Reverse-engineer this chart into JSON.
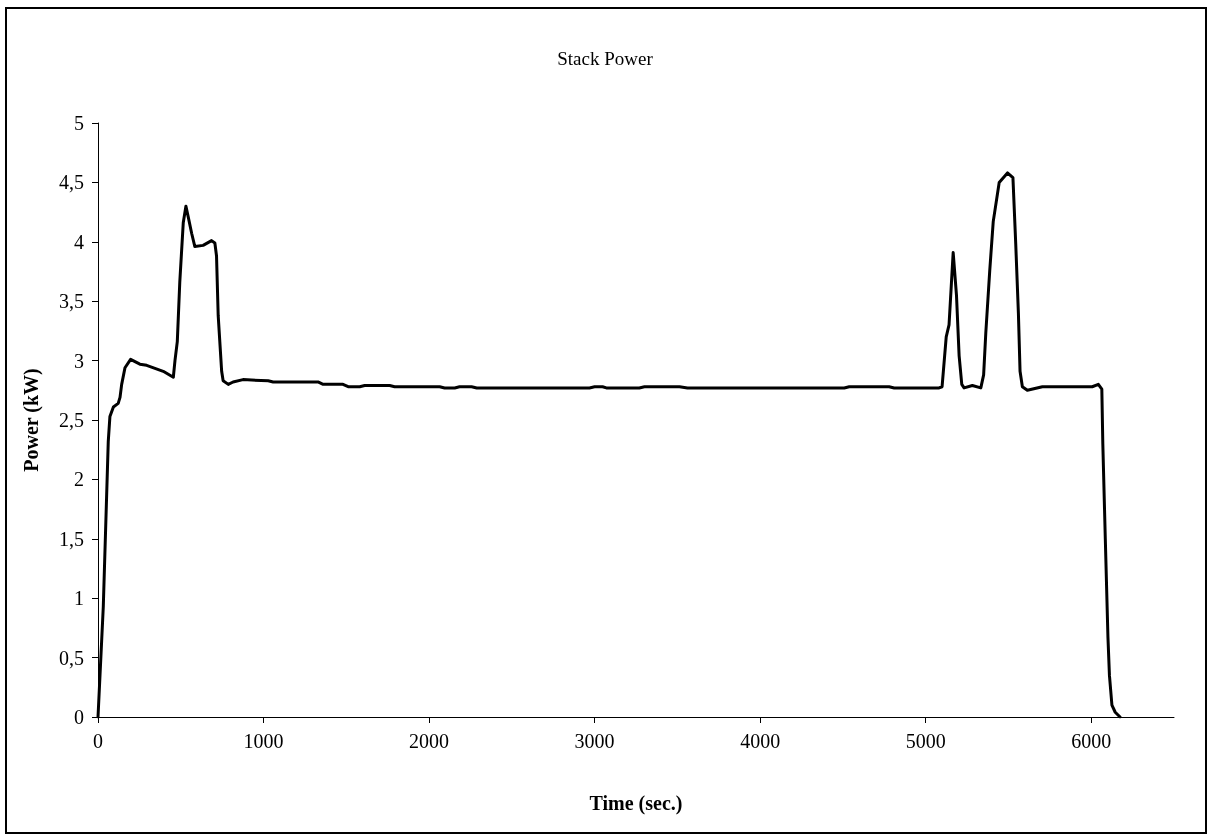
{
  "chart_data": {
    "type": "line",
    "title": "Stack Power",
    "xlabel": "Time (sec.)",
    "ylabel": "Power (kW)",
    "xlim": [
      0,
      6500
    ],
    "xticks": [
      0,
      1000,
      2000,
      3000,
      4000,
      5000,
      6000
    ],
    "ylim": [
      0,
      5
    ],
    "yticks": [
      0,
      {
        "value": 0.5,
        "label": "0,5"
      },
      1,
      {
        "value": 1.5,
        "label": "1,5"
      },
      2,
      {
        "value": 2.5,
        "label": "2,5"
      },
      3,
      {
        "value": 3.5,
        "label": "3,5"
      },
      4,
      {
        "value": 4.5,
        "label": "4,5"
      },
      5
    ],
    "grid": false,
    "marker": "none",
    "line_style": "solid",
    "series": [
      {
        "color": "#000000",
        "x": [
          0,
          32,
          62,
          72,
          93,
          122,
          133,
          143,
          163,
          197,
          253,
          294,
          394,
          455,
          465,
          479,
          494,
          515,
          531,
          545,
          566,
          585,
          635,
          686,
          706,
          716,
          726,
          747,
          756,
          787,
          816,
          876,
          1028,
          1058,
          1329,
          1360,
          1480,
          1511,
          1581,
          1611,
          1762,
          1792,
          2064,
          2094,
          2155,
          2184,
          2257,
          2288,
          2969,
          3000,
          3048,
          3071,
          3270,
          3301,
          3513,
          3561,
          4508,
          4538,
          4779,
          4810,
          5081,
          5099,
          5124,
          5141,
          5166,
          5186,
          5202,
          5218,
          5232,
          5282,
          5333,
          5350,
          5363,
          5387,
          5408,
          5444,
          5494,
          5527,
          5544,
          5560,
          5570,
          5584,
          5614,
          5705,
          6006,
          6043,
          6064,
          6070,
          6085,
          6101,
          6110,
          6125,
          6145,
          6174
        ],
        "values": [
          0,
          0.93,
          2.32,
          2.53,
          2.61,
          2.64,
          2.69,
          2.8,
          2.94,
          3.01,
          2.97,
          2.96,
          2.91,
          2.86,
          3.0,
          3.16,
          3.66,
          4.16,
          4.3,
          4.21,
          4.07,
          3.96,
          3.97,
          4.01,
          3.99,
          3.88,
          3.38,
          2.91,
          2.83,
          2.8,
          2.82,
          2.84,
          2.83,
          2.82,
          2.82,
          2.8,
          2.8,
          2.78,
          2.78,
          2.79,
          2.79,
          2.78,
          2.78,
          2.77,
          2.77,
          2.78,
          2.78,
          2.77,
          2.77,
          2.78,
          2.78,
          2.77,
          2.77,
          2.78,
          2.78,
          2.77,
          2.77,
          2.78,
          2.78,
          2.77,
          2.77,
          2.78,
          3.2,
          3.3,
          3.91,
          3.55,
          3.04,
          2.8,
          2.77,
          2.79,
          2.77,
          2.88,
          3.23,
          3.76,
          4.17,
          4.5,
          4.58,
          4.54,
          3.98,
          3.4,
          2.91,
          2.78,
          2.75,
          2.78,
          2.78,
          2.8,
          2.76,
          2.3,
          1.5,
          0.67,
          0.35,
          0.1,
          0.04,
          0
        ]
      }
    ]
  }
}
